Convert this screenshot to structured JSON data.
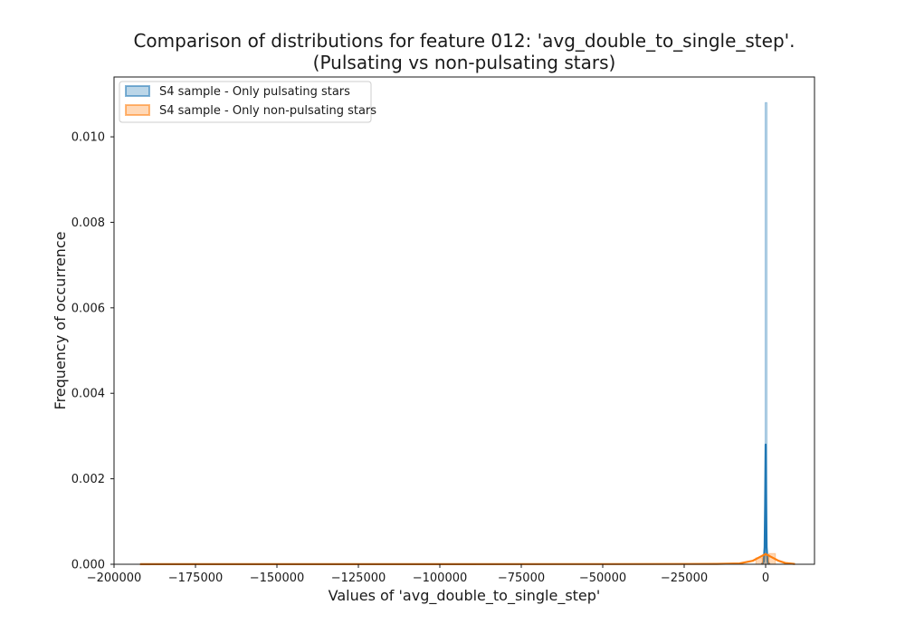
{
  "chart_data": {
    "type": "area",
    "title": "Comparison of distributions for feature 012: 'avg_double_to_single_step'.",
    "subtitle": "(Pulsating vs non-pulsating stars)",
    "xlabel": "Values of 'avg_double_to_single_step'",
    "ylabel": "Frequency of occurrence",
    "xlim": [
      -200000,
      15000
    ],
    "ylim": [
      0,
      0.0114
    ],
    "x_ticks": [
      -200000,
      -175000,
      -150000,
      -125000,
      -100000,
      -75000,
      -50000,
      -25000,
      0
    ],
    "x_tick_labels": [
      "−200000",
      "−175000",
      "−150000",
      "−125000",
      "−100000",
      "−75000",
      "−50000",
      "−25000",
      "0"
    ],
    "y_ticks": [
      0,
      0.002,
      0.004,
      0.006,
      0.008,
      0.01
    ],
    "y_tick_labels": [
      "0.000",
      "0.002",
      "0.004",
      "0.006",
      "0.008",
      "0.010"
    ],
    "grid": false,
    "legend_position": "top-left",
    "series": [
      {
        "name": "S4 sample - Only pulsating stars",
        "color": "#1f77b4",
        "hist": [
          {
            "x0": -150,
            "x1": 150,
            "y": 0.0108
          }
        ],
        "kde": [
          [
            -1200,
            0
          ],
          [
            -600,
            5e-05
          ],
          [
            -300,
            0.0004
          ],
          [
            -150,
            0.0014
          ],
          [
            0,
            0.0028
          ],
          [
            150,
            0.0014
          ],
          [
            300,
            0.0004
          ],
          [
            600,
            5e-05
          ],
          [
            1200,
            0
          ]
        ]
      },
      {
        "name": "S4 sample - Only non-pulsating stars",
        "color": "#ff7f0e",
        "hist": [
          {
            "x0": -192000,
            "x1": -189000,
            "y": 4e-06
          },
          {
            "x0": -3000,
            "x1": -1000,
            "y": 0.00015
          },
          {
            "x0": -1000,
            "x1": 1000,
            "y": 0.00022
          },
          {
            "x0": 1000,
            "x1": 3000,
            "y": 0.00025
          }
        ],
        "kde": [
          [
            -192000,
            3e-06
          ],
          [
            -150000,
            3e-06
          ],
          [
            -100000,
            3e-06
          ],
          [
            -50000,
            4e-06
          ],
          [
            -15000,
            8e-06
          ],
          [
            -8000,
            2e-05
          ],
          [
            -4000,
            8e-05
          ],
          [
            -2000,
            0.00016
          ],
          [
            0,
            0.00024
          ],
          [
            2000,
            0.00016
          ],
          [
            4000,
            8e-05
          ],
          [
            6000,
            3e-05
          ],
          [
            9000,
            6e-06
          ]
        ]
      }
    ]
  }
}
